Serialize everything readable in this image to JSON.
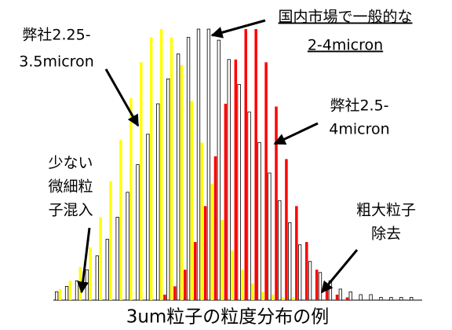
{
  "chart_data": {
    "type": "bar",
    "title": "3um粒子の粒度分布の例",
    "categories": [
      null,
      null,
      null,
      null,
      null,
      null,
      null,
      null,
      null,
      null,
      null,
      null,
      null,
      null,
      null,
      null,
      null,
      null,
      null,
      null,
      null,
      null,
      null,
      null,
      null,
      null,
      null,
      null,
      null,
      null,
      null,
      null,
      null,
      null,
      null,
      null
    ],
    "ylim": [
      0,
      100
    ],
    "series": [
      {
        "color": "#ffffff",
        "values": [
          3,
          5,
          7,
          11,
          16,
          22,
          30,
          39,
          49,
          60,
          71,
          80,
          89,
          95,
          98,
          98,
          94,
          87,
          78,
          68,
          57,
          46,
          36,
          28,
          20,
          14,
          10,
          7,
          4,
          3,
          2,
          2,
          1,
          1,
          1,
          1
        ]
      },
      {
        "color": "#ffff00",
        "values": [
          4,
          7,
          12,
          19,
          30,
          43,
          58,
          73,
          86,
          95,
          98,
          95,
          85,
          72,
          57,
          42,
          29,
          18,
          11,
          6,
          3,
          2,
          1,
          1,
          0,
          0,
          0,
          0,
          0,
          0,
          0,
          0,
          0,
          0,
          0,
          0
        ]
      },
      {
        "color": "#ff0000",
        "values": [
          0,
          0,
          0,
          0,
          0,
          0,
          0,
          0,
          0,
          0,
          2,
          5,
          11,
          21,
          34,
          52,
          71,
          87,
          98,
          98,
          86,
          70,
          51,
          34,
          21,
          11,
          5,
          2,
          1,
          0,
          0,
          0,
          0,
          0,
          0,
          0
        ]
      }
    ],
    "annotations": [
      {
        "lines": [
          "弊社2.25-",
          "3.5micron"
        ]
      },
      {
        "lines": [
          "国内市場で一般的な",
          "2-4micron"
        ]
      },
      {
        "lines": [
          "弊社2.5-",
          "4micron"
        ]
      },
      {
        "lines": [
          "少ない",
          "微細粒",
          "子混入"
        ]
      },
      {
        "lines": [
          "粗大粒子",
          "除去"
        ]
      }
    ]
  }
}
